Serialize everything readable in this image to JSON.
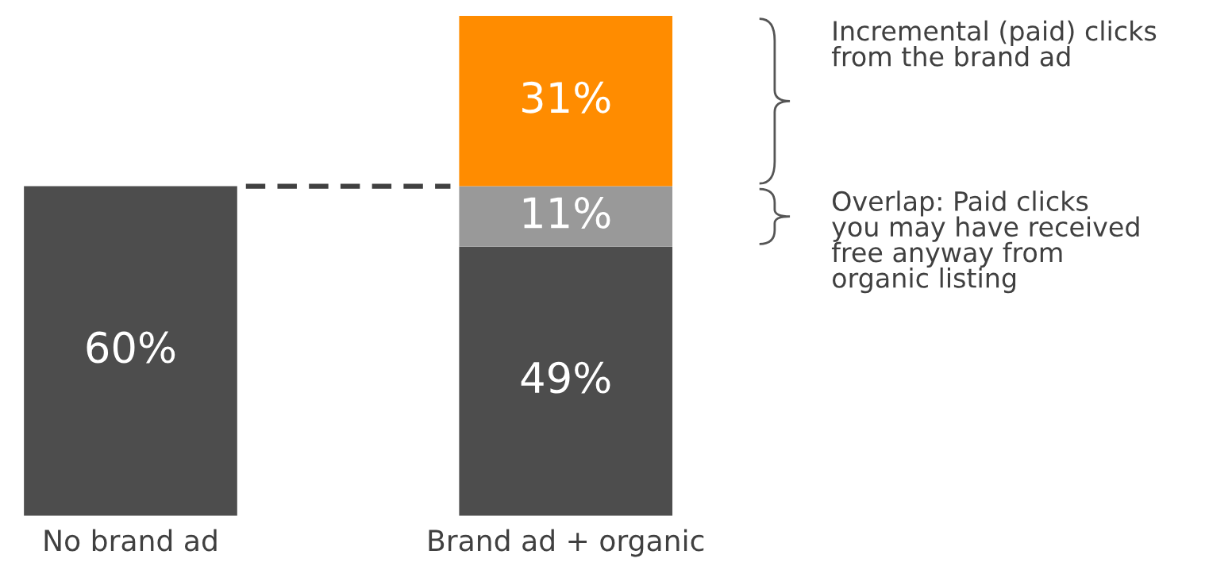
{
  "chart_data": {
    "type": "bar",
    "stacked": true,
    "categories": [
      "No brand ad",
      "Brand ad + organic"
    ],
    "series": [
      {
        "color": "#4d4d4d",
        "values": [
          60,
          49
        ],
        "value_labels": [
          "60%",
          "49%"
        ]
      },
      {
        "color": "#999999",
        "values": [
          null,
          11
        ],
        "value_labels": [
          null,
          "11%"
        ]
      },
      {
        "color": "#ff8c00",
        "values": [
          null,
          31
        ],
        "value_labels": [
          null,
          "31%"
        ]
      }
    ],
    "ref_lines": [
      {
        "axis": "y",
        "value": 60,
        "line_style": "dashed",
        "color": "#404040"
      }
    ],
    "annotations": [
      "Incremental (paid) clicks\nfrom the brand ad",
      "Overlap: Paid clicks\nyou may have received\nfree anyway from\norganic listing"
    ],
    "legend": false,
    "grid": false
  }
}
